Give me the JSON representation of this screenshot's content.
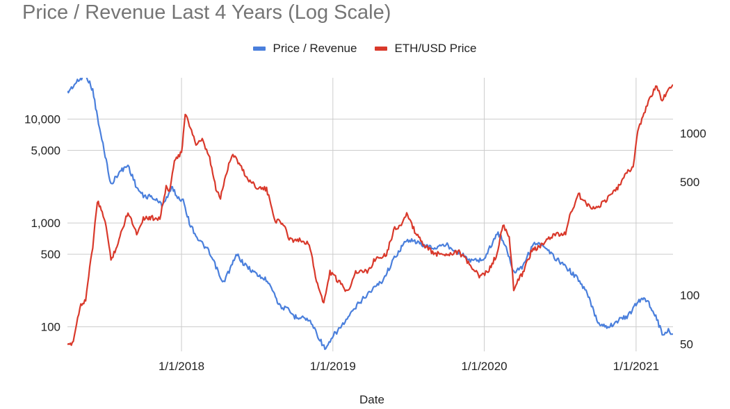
{
  "colors": {
    "price_revenue": "#4a7fdc",
    "eth_usd": "#d9392b",
    "grid": "#cccccc",
    "text": "#222222",
    "title": "#757575"
  },
  "chart_data": {
    "type": "line",
    "title": "Price / Revenue Last 4 Years (Log Scale)",
    "xlabel": "Date",
    "x_range": [
      "2017-04-01",
      "2021-03-31"
    ],
    "x_ticks": [
      "1/1/2018",
      "1/1/2019",
      "1/1/2020",
      "1/1/2021"
    ],
    "grid": true,
    "legend_position": "top",
    "y_left": {
      "scale": "log",
      "range": [
        58,
        25000
      ],
      "ticks": [
        100,
        500,
        1000,
        5000,
        10000
      ],
      "tick_labels": [
        "100",
        "500",
        "1,000",
        "5,000",
        "10,000"
      ]
    },
    "y_right": {
      "scale": "log",
      "range": [
        45,
        2200
      ],
      "tick_labels": [
        "50",
        "100",
        "500",
        "1000"
      ],
      "tick_values": [
        50,
        100,
        500,
        1000
      ]
    },
    "series": [
      {
        "name": "Price / Revenue",
        "axis": "left",
        "color": "#4a7fdc",
        "points": [
          [
            "2017-04-01",
            18000
          ],
          [
            "2017-04-20",
            22000
          ],
          [
            "2017-05-15",
            27000
          ],
          [
            "2017-06-01",
            19000
          ],
          [
            "2017-06-15",
            9000
          ],
          [
            "2017-07-01",
            4500
          ],
          [
            "2017-07-15",
            2300
          ],
          [
            "2017-08-01",
            3000
          ],
          [
            "2017-08-25",
            3600
          ],
          [
            "2017-09-15",
            2200
          ],
          [
            "2017-10-01",
            1800
          ],
          [
            "2017-10-20",
            1800
          ],
          [
            "2017-11-15",
            1500
          ],
          [
            "2017-12-01",
            1900
          ],
          [
            "2017-12-10",
            2200
          ],
          [
            "2017-12-25",
            1700
          ],
          [
            "2018-01-05",
            1700
          ],
          [
            "2018-01-20",
            1000
          ],
          [
            "2018-02-10",
            700
          ],
          [
            "2018-03-05",
            550
          ],
          [
            "2018-03-25",
            380
          ],
          [
            "2018-04-10",
            260
          ],
          [
            "2018-05-01",
            380
          ],
          [
            "2018-05-15",
            500
          ],
          [
            "2018-06-01",
            400
          ],
          [
            "2018-07-01",
            320
          ],
          [
            "2018-08-01",
            270
          ],
          [
            "2018-08-25",
            160
          ],
          [
            "2018-09-15",
            145
          ],
          [
            "2018-10-01",
            125
          ],
          [
            "2018-10-20",
            125
          ],
          [
            "2018-11-10",
            110
          ],
          [
            "2018-12-01",
            75
          ],
          [
            "2018-12-15",
            60
          ],
          [
            "2019-01-05",
            85
          ],
          [
            "2019-01-25",
            105
          ],
          [
            "2019-02-15",
            135
          ],
          [
            "2019-03-05",
            170
          ],
          [
            "2019-04-01",
            220
          ],
          [
            "2019-05-01",
            280
          ],
          [
            "2019-06-01",
            480
          ],
          [
            "2019-06-20",
            620
          ],
          [
            "2019-07-05",
            700
          ],
          [
            "2019-08-01",
            620
          ],
          [
            "2019-09-01",
            570
          ],
          [
            "2019-10-01",
            620
          ],
          [
            "2019-11-01",
            520
          ],
          [
            "2019-12-01",
            430
          ],
          [
            "2020-01-01",
            450
          ],
          [
            "2020-02-01",
            800
          ],
          [
            "2020-02-15",
            700
          ],
          [
            "2020-03-12",
            340
          ],
          [
            "2020-04-01",
            380
          ],
          [
            "2020-05-01",
            650
          ],
          [
            "2020-05-20",
            600
          ],
          [
            "2020-06-15",
            480
          ],
          [
            "2020-07-15",
            380
          ],
          [
            "2020-08-10",
            300
          ],
          [
            "2020-09-05",
            210
          ],
          [
            "2020-10-01",
            110
          ],
          [
            "2020-10-25",
            100
          ],
          [
            "2020-11-20",
            115
          ],
          [
            "2020-12-15",
            130
          ],
          [
            "2021-01-01",
            165
          ],
          [
            "2021-01-15",
            190
          ],
          [
            "2021-02-01",
            170
          ],
          [
            "2021-02-20",
            120
          ],
          [
            "2021-03-05",
            85
          ],
          [
            "2021-03-20",
            92
          ],
          [
            "2021-03-31",
            85
          ]
        ]
      },
      {
        "name": "ETH/USD Price",
        "axis": "right",
        "color": "#d9392b",
        "points": [
          [
            "2017-04-01",
            48
          ],
          [
            "2017-04-15",
            52
          ],
          [
            "2017-05-01",
            85
          ],
          [
            "2017-05-15",
            95
          ],
          [
            "2017-06-01",
            200
          ],
          [
            "2017-06-12",
            380
          ],
          [
            "2017-07-01",
            290
          ],
          [
            "2017-07-15",
            165
          ],
          [
            "2017-08-01",
            210
          ],
          [
            "2017-08-25",
            330
          ],
          [
            "2017-09-15",
            240
          ],
          [
            "2017-10-01",
            300
          ],
          [
            "2017-10-20",
            300
          ],
          [
            "2017-11-10",
            300
          ],
          [
            "2017-11-25",
            460
          ],
          [
            "2017-12-05",
            450
          ],
          [
            "2017-12-15",
            700
          ],
          [
            "2018-01-01",
            750
          ],
          [
            "2018-01-10",
            1300
          ],
          [
            "2018-01-25",
            1050
          ],
          [
            "2018-02-05",
            850
          ],
          [
            "2018-02-20",
            900
          ],
          [
            "2018-03-10",
            700
          ],
          [
            "2018-03-25",
            450
          ],
          [
            "2018-04-05",
            400
          ],
          [
            "2018-04-25",
            650
          ],
          [
            "2018-05-05",
            750
          ],
          [
            "2018-05-20",
            650
          ],
          [
            "2018-06-10",
            520
          ],
          [
            "2018-07-05",
            460
          ],
          [
            "2018-07-25",
            450
          ],
          [
            "2018-08-15",
            290
          ],
          [
            "2018-09-01",
            280
          ],
          [
            "2018-09-20",
            220
          ],
          [
            "2018-10-10",
            220
          ],
          [
            "2018-11-05",
            210
          ],
          [
            "2018-11-20",
            130
          ],
          [
            "2018-12-10",
            88
          ],
          [
            "2018-12-25",
            140
          ],
          [
            "2019-01-10",
            125
          ],
          [
            "2019-02-05",
            105
          ],
          [
            "2019-02-25",
            140
          ],
          [
            "2019-03-25",
            140
          ],
          [
            "2019-04-15",
            170
          ],
          [
            "2019-05-10",
            180
          ],
          [
            "2019-05-30",
            260
          ],
          [
            "2019-06-15",
            270
          ],
          [
            "2019-06-28",
            320
          ],
          [
            "2019-07-10",
            270
          ],
          [
            "2019-08-01",
            215
          ],
          [
            "2019-09-01",
            180
          ],
          [
            "2019-10-01",
            180
          ],
          [
            "2019-11-01",
            185
          ],
          [
            "2019-12-01",
            150
          ],
          [
            "2019-12-20",
            130
          ],
          [
            "2020-01-10",
            140
          ],
          [
            "2020-02-01",
            180
          ],
          [
            "2020-02-15",
            270
          ],
          [
            "2020-03-01",
            230
          ],
          [
            "2020-03-12",
            110
          ],
          [
            "2020-04-01",
            135
          ],
          [
            "2020-04-25",
            190
          ],
          [
            "2020-05-15",
            200
          ],
          [
            "2020-06-15",
            235
          ],
          [
            "2020-07-15",
            240
          ],
          [
            "2020-07-25",
            310
          ],
          [
            "2020-08-15",
            420
          ],
          [
            "2020-09-05",
            360
          ],
          [
            "2020-09-25",
            345
          ],
          [
            "2020-10-15",
            375
          ],
          [
            "2020-11-15",
            450
          ],
          [
            "2020-12-10",
            570
          ],
          [
            "2020-12-25",
            620
          ],
          [
            "2021-01-05",
            1050
          ],
          [
            "2021-01-20",
            1300
          ],
          [
            "2021-02-05",
            1700
          ],
          [
            "2021-02-20",
            1950
          ],
          [
            "2021-03-05",
            1550
          ],
          [
            "2021-03-15",
            1800
          ],
          [
            "2021-03-31",
            2000
          ]
        ]
      }
    ]
  }
}
